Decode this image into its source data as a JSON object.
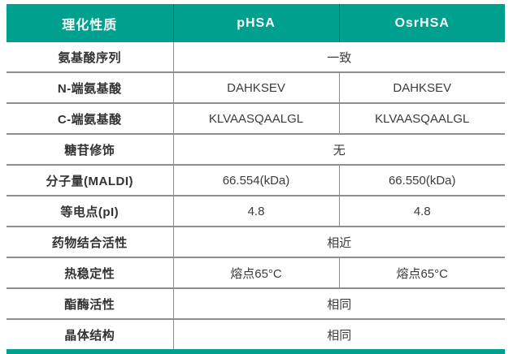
{
  "colors": {
    "accent_teal": "#00A08F",
    "grid_gray": "#8E8E8E",
    "header_divider_gray": "#4D4D4D",
    "header_text": "#FFFFFF",
    "body_text": "#3B3B3B"
  },
  "chart_data": {
    "type": "table",
    "columns": [
      "理化性质",
      "pHSA",
      "OsrHSA"
    ],
    "rows": [
      {
        "label": "氨基酸序列",
        "merged": true,
        "values": [
          "一致"
        ]
      },
      {
        "label": "N-端氨基酸",
        "merged": false,
        "values": [
          "DAHKSEV",
          "DAHKSEV"
        ]
      },
      {
        "label": "C-端氨基酸",
        "merged": false,
        "values": [
          "KLVAASQAALGL",
          "KLVAASQAALGL"
        ]
      },
      {
        "label": "糖苷修饰",
        "merged": true,
        "values": [
          "无"
        ]
      },
      {
        "label": "分子量(MALDI)",
        "merged": false,
        "values": [
          "66.554(kDa)",
          "66.550(kDa)"
        ]
      },
      {
        "label": "等电点(pI)",
        "merged": false,
        "values": [
          "4.8",
          "4.8"
        ]
      },
      {
        "label": "药物结合活性",
        "merged": true,
        "values": [
          "相近"
        ]
      },
      {
        "label": "热稳定性",
        "merged": false,
        "values": [
          "熔点65°C",
          "熔点65°C"
        ]
      },
      {
        "label": "酯酶活性",
        "merged": true,
        "values": [
          "相同"
        ]
      },
      {
        "label": "晶体结构",
        "merged": true,
        "values": [
          "相同"
        ]
      }
    ]
  }
}
